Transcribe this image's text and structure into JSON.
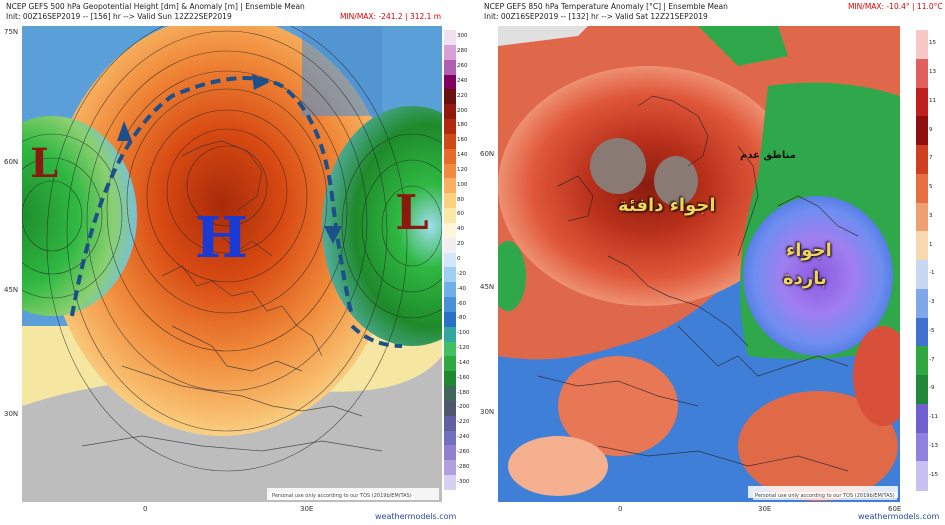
{
  "left": {
    "header_line1": "NCEP GEFS 500 hPa Geopotential Height [dm] & Anomaly [m] | Ensemble Mean",
    "header_line2": "Init: 00Z16SEP2019 -- [156] hr --> Valid Sun 12Z22SEP2019",
    "minmax": "MIN/MAX: -241.2 | 312.1 m",
    "lat_labels": [
      "75N",
      "60N",
      "45N",
      "30N"
    ],
    "lon_labels": [
      "0",
      "30E"
    ],
    "colorbar_ticks": [
      "300",
      "280",
      "260",
      "240",
      "220",
      "200",
      "180",
      "160",
      "140",
      "120",
      "100",
      "80",
      "60",
      "40",
      "20",
      "0",
      "-20",
      "-40",
      "-60",
      "-80",
      "-100",
      "-120",
      "-140",
      "-160",
      "-180",
      "-200",
      "-220",
      "-240",
      "-260",
      "-280",
      "-300"
    ],
    "high_label": "H",
    "low_labels": [
      "L",
      "L"
    ],
    "watermark": "Personal use only according to our TOS (2019b/EM/TAS)",
    "credit": "weathermodels.com",
    "colors": {
      "high": "#1a3ad6",
      "low": "#8a1a10",
      "arrow": "#1d4f8a"
    }
  },
  "right": {
    "header_line1": "NCEP GEFS 850 hPa Temperature Anomaly [°C] | Ensemble Mean",
    "header_line2": "Init: 00Z16SEP2019 -- [132] hr --> Valid Sat 12Z21SEP2019",
    "minmax": "MIN/MAX: -10.4° | 11.0°C",
    "lat_labels": [
      "60N",
      "45N",
      "30N"
    ],
    "lon_labels": [
      "0",
      "30E",
      "60E"
    ],
    "colorbar_ticks": [
      "15",
      "13",
      "11",
      "9",
      "7",
      "5",
      "3",
      "1",
      "-1",
      "-3",
      "-5",
      "-7",
      "-9",
      "-11",
      "-13",
      "-15"
    ],
    "warm_label": "اجواء دافئة",
    "cold_label_1": "اجواء",
    "cold_label_2": "باردة",
    "unstable_label": "مناطق عدم",
    "watermark": "Personal use only according to our TOS (2019b/EM/TAS)",
    "credit": "weathermodels.com"
  }
}
